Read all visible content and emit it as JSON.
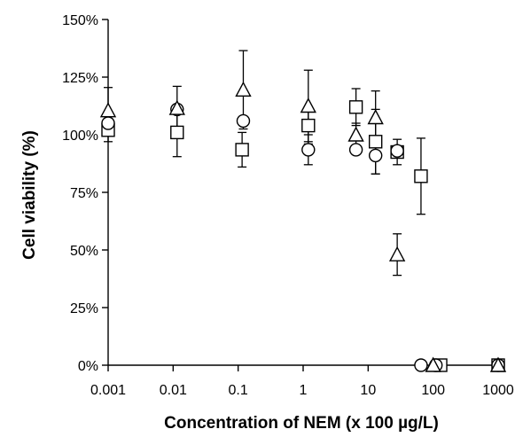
{
  "chart_data": {
    "type": "scatter",
    "xlabel": "Concentration of NEM (x 100 µg/L)",
    "ylabel": "Cell viability (%)",
    "x_scale": "log",
    "xlim": [
      0.001,
      1000
    ],
    "ylim": [
      0,
      150
    ],
    "x_ticks": [
      "0.001",
      "0.01",
      "0.1",
      "1",
      "10",
      "100",
      "1000"
    ],
    "y_ticks": [
      "0%",
      "25%",
      "50%",
      "75%",
      "100%",
      "125%",
      "150%"
    ],
    "grid": false,
    "series": [
      {
        "marker": "square",
        "points": [
          {
            "x": 0.001,
            "y": 102,
            "err": 5
          },
          {
            "x": 0.0115,
            "y": 101,
            "err": 10.5
          },
          {
            "x": 0.115,
            "y": 93.5,
            "err": 7.5
          },
          {
            "x": 1.2,
            "y": 104,
            "err": 8
          },
          {
            "x": 6.5,
            "y": 112,
            "err": 8
          },
          {
            "x": 13,
            "y": 97,
            "err": 14
          },
          {
            "x": 28,
            "y": 92.5,
            "err": 5.5
          },
          {
            "x": 65,
            "y": 82,
            "err": 16.5
          },
          {
            "x": 130,
            "y": 0
          },
          {
            "x": 1000,
            "y": 0
          }
        ]
      },
      {
        "marker": "circle",
        "points": [
          {
            "x": 0.001,
            "y": 105
          },
          {
            "x": 0.0115,
            "y": 111
          },
          {
            "x": 0.12,
            "y": 106
          },
          {
            "x": 1.2,
            "y": 93.5,
            "err": 6.5
          },
          {
            "x": 6.5,
            "y": 93.5
          },
          {
            "x": 13,
            "y": 91,
            "err": 8
          },
          {
            "x": 28,
            "y": 93
          },
          {
            "x": 65,
            "y": 0
          },
          {
            "x": 110,
            "y": 0
          },
          {
            "x": 1000,
            "y": 0
          }
        ]
      },
      {
        "marker": "triangle",
        "points": [
          {
            "x": 0.001,
            "y": 110.5,
            "err": 10
          },
          {
            "x": 0.0115,
            "y": 111.5,
            "err": 9.5
          },
          {
            "x": 0.12,
            "y": 119.5,
            "err": 17
          },
          {
            "x": 1.2,
            "y": 112.5,
            "err": 15.5
          },
          {
            "x": 6.5,
            "y": 100,
            "err": 5
          },
          {
            "x": 13,
            "y": 107.5,
            "err": 11.5
          },
          {
            "x": 28,
            "y": 48,
            "err": 9
          },
          {
            "x": 100,
            "y": 0
          },
          {
            "x": 1000,
            "y": 0
          }
        ]
      }
    ]
  }
}
